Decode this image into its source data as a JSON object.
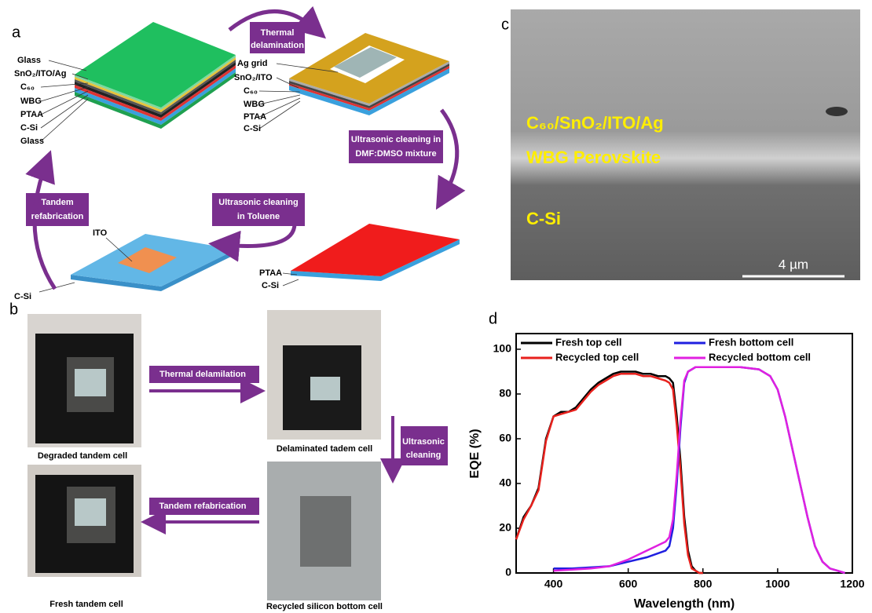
{
  "panel_a": {
    "label": "a",
    "stack1_layers": [
      "Glass",
      "SnO₂/ITO/Ag",
      "C₆₀",
      "WBG",
      "PTAA",
      "C-Si",
      "Glass"
    ],
    "stack2_layers": [
      "Ag grid",
      "SnO₂/ITO",
      "C₆₀",
      "WBG",
      "PTAA",
      "C-Si"
    ],
    "stack3_layers": [
      "PTAA",
      "C-Si"
    ],
    "stack4_layers": [
      "ITO",
      "C-Si"
    ],
    "steps": [
      [
        "Thermal",
        "delamination"
      ],
      [
        "Ultrasonic cleaning in",
        "DMF:DMSO mixture"
      ],
      [
        "Ultrasonic cleaning",
        "in Toluene"
      ],
      [
        "Tandem",
        "refabrication"
      ]
    ]
  },
  "panel_b": {
    "label": "b",
    "captions": [
      "Degraded tandem cell",
      "Delaminated tadem cell",
      "Recycled silicon bottom cell",
      "Fresh tandem cell"
    ],
    "arrows": [
      [
        "Thermal delamilation"
      ],
      [
        "Ultrasonic",
        "cleaning"
      ],
      [
        "Tandem refabrication"
      ]
    ]
  },
  "panel_c": {
    "label": "c",
    "layers": [
      "C₆₀/SnO₂/ITO/Ag",
      "WBG Perovskite",
      "C-Si"
    ],
    "scale_bar": "4 µm"
  },
  "chart_data": {
    "type": "line",
    "panel_label": "d",
    "x_label": "Wavelength (nm)",
    "y_label": "EQE (%)",
    "xlim": [
      300,
      1200
    ],
    "xticks": [
      400,
      600,
      800,
      1000,
      1200
    ],
    "ylim": [
      0,
      107
    ],
    "yticks": [
      0,
      20,
      40,
      60,
      80,
      100
    ],
    "series": [
      {
        "name": "Fresh top cell",
        "color": "#000000",
        "x": [
          300,
          320,
          340,
          360,
          380,
          400,
          420,
          440,
          460,
          480,
          500,
          520,
          540,
          560,
          580,
          600,
          620,
          640,
          660,
          680,
          700,
          710,
          720,
          730,
          740,
          750,
          760,
          770,
          780,
          790,
          800
        ],
        "values": [
          15,
          25,
          30,
          38,
          60,
          70,
          72,
          72,
          74,
          78,
          82,
          85,
          87,
          89,
          90,
          90,
          90,
          89,
          89,
          88,
          88,
          87,
          85,
          70,
          50,
          25,
          10,
          3,
          1,
          0,
          0
        ]
      },
      {
        "name": "Recycled top cell",
        "color": "#e8211d",
        "x": [
          300,
          320,
          340,
          360,
          380,
          400,
          420,
          440,
          460,
          480,
          500,
          520,
          540,
          560,
          580,
          600,
          620,
          640,
          660,
          680,
          700,
          710,
          720,
          730,
          740,
          750,
          760,
          770,
          780,
          790,
          800
        ],
        "values": [
          15,
          24,
          30,
          37,
          59,
          70,
          71,
          72,
          73,
          77,
          81,
          84,
          86,
          88,
          89,
          89,
          89,
          88,
          88,
          87,
          86,
          85,
          82,
          66,
          46,
          22,
          8,
          2,
          1,
          0,
          0
        ]
      },
      {
        "name": "Fresh bottom cell",
        "color": "#1f1fe0",
        "x": [
          400,
          450,
          500,
          550,
          600,
          650,
          700,
          710,
          720,
          730,
          740,
          750,
          760,
          780,
          800,
          850,
          900,
          950,
          980,
          1000,
          1020,
          1040,
          1060,
          1080,
          1100,
          1120,
          1140,
          1160,
          1180
        ],
        "values": [
          2,
          2,
          2.5,
          3,
          5,
          7,
          10,
          12,
          20,
          40,
          65,
          85,
          90,
          92,
          92,
          92,
          92,
          91,
          88,
          82,
          70,
          55,
          40,
          25,
          12,
          5,
          2,
          1,
          0
        ]
      },
      {
        "name": "Recycled bottom cell",
        "color": "#e020e0",
        "x": [
          400,
          450,
          500,
          550,
          600,
          650,
          700,
          710,
          720,
          730,
          740,
          750,
          760,
          780,
          800,
          850,
          900,
          950,
          980,
          1000,
          1020,
          1040,
          1060,
          1080,
          1100,
          1120,
          1140,
          1160,
          1180
        ],
        "values": [
          1,
          1.5,
          2,
          3,
          6,
          10,
          14,
          16,
          24,
          44,
          68,
          86,
          90,
          92,
          92,
          92,
          92,
          91,
          88,
          82,
          70,
          55,
          40,
          25,
          12,
          5,
          2,
          1,
          0
        ]
      }
    ]
  }
}
